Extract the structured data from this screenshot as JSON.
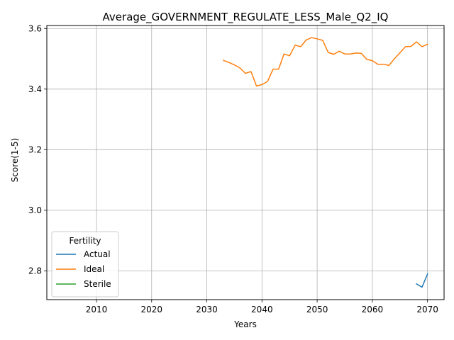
{
  "chart_data": {
    "type": "line",
    "title": "Average_GOVERNMENT_REGULATE_LESS_Male_Q2_IQ",
    "xlabel": "Years",
    "ylabel": "Score(1-5)",
    "xlim": [
      2001,
      2073
    ],
    "ylim": [
      2.705,
      3.61
    ],
    "xticks": [
      2010,
      2020,
      2030,
      2040,
      2050,
      2060,
      2070
    ],
    "yticks": [
      2.8,
      3.0,
      3.2,
      3.4,
      3.6
    ],
    "xtick_labels": [
      "2010",
      "2020",
      "2030",
      "2040",
      "2050",
      "2060",
      "2070"
    ],
    "ytick_labels": [
      "2.8",
      "3.0",
      "3.2",
      "3.4",
      "3.6"
    ],
    "grid": true,
    "legend": {
      "title": "Fertility",
      "position": "lower-left"
    },
    "series": [
      {
        "name": "Actual",
        "color": "#1f77b4",
        "x": [
          2068,
          2069,
          2070
        ],
        "y": [
          2.757,
          2.746,
          2.79
        ]
      },
      {
        "name": "Ideal",
        "color": "#ff7f0e",
        "x": [
          2033,
          2034,
          2035,
          2036,
          2037,
          2038,
          2039,
          2040,
          2041,
          2042,
          2043,
          2044,
          2045,
          2046,
          2047,
          2048,
          2049,
          2050,
          2051,
          2052,
          2053,
          2054,
          2055,
          2056,
          2057,
          2058,
          2059,
          2060,
          2061,
          2062,
          2063,
          2064,
          2065,
          2066,
          2067,
          2068,
          2069,
          2070
        ],
        "y": [
          3.495,
          3.488,
          3.48,
          3.47,
          3.452,
          3.458,
          3.41,
          3.415,
          3.425,
          3.466,
          3.466,
          3.516,
          3.51,
          3.545,
          3.54,
          3.562,
          3.57,
          3.566,
          3.561,
          3.521,
          3.515,
          3.525,
          3.516,
          3.516,
          3.519,
          3.518,
          3.498,
          3.494,
          3.482,
          3.482,
          3.478,
          3.5,
          3.52,
          3.54,
          3.541,
          3.556,
          3.54,
          3.548
        ]
      },
      {
        "name": "Sterile",
        "color": "#2ca02c",
        "x": [],
        "y": []
      }
    ]
  }
}
